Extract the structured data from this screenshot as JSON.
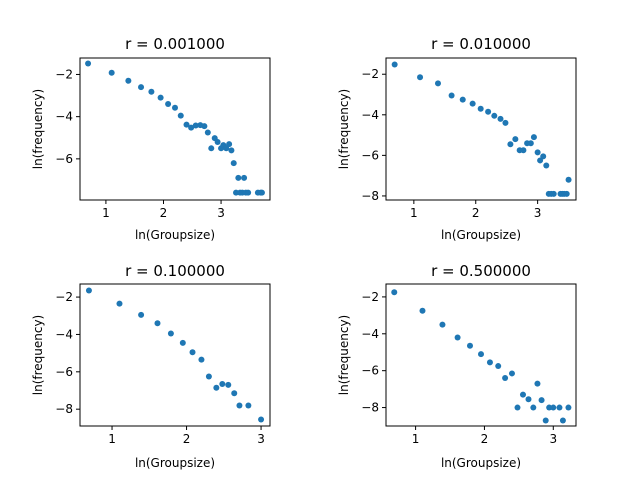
{
  "chart_data": [
    {
      "type": "scatter",
      "title": "r = 0.001000",
      "xlabel": "ln(Groupsize)",
      "ylabel": "ln(frequency)",
      "xlim": [
        0.55,
        3.85
      ],
      "ylim": [
        -7.95,
        -1.22
      ],
      "xticks": [
        1,
        2,
        3
      ],
      "yticks": [
        -2,
        -4,
        -6
      ],
      "color": "#1f77b4",
      "points": [
        [
          0.69,
          -1.48
        ],
        [
          1.1,
          -1.92
        ],
        [
          1.39,
          -2.3
        ],
        [
          1.61,
          -2.6
        ],
        [
          1.79,
          -2.82
        ],
        [
          1.95,
          -3.1
        ],
        [
          2.08,
          -3.4
        ],
        [
          2.2,
          -3.58
        ],
        [
          2.3,
          -3.95
        ],
        [
          2.4,
          -4.38
        ],
        [
          2.48,
          -4.52
        ],
        [
          2.56,
          -4.42
        ],
        [
          2.64,
          -4.4
        ],
        [
          2.71,
          -4.45
        ],
        [
          2.77,
          -4.75
        ],
        [
          2.83,
          -5.5
        ],
        [
          2.89,
          -5.02
        ],
        [
          2.94,
          -5.2
        ],
        [
          3.0,
          -5.5
        ],
        [
          3.04,
          -5.35
        ],
        [
          3.09,
          -5.5
        ],
        [
          3.14,
          -5.3
        ],
        [
          3.18,
          -5.6
        ],
        [
          3.22,
          -6.2
        ],
        [
          3.26,
          -7.6
        ],
        [
          3.3,
          -6.9
        ],
        [
          3.33,
          -7.6
        ],
        [
          3.37,
          -7.6
        ],
        [
          3.4,
          -6.9
        ],
        [
          3.43,
          -7.6
        ],
        [
          3.47,
          -7.6
        ],
        [
          3.64,
          -7.6
        ],
        [
          3.69,
          -7.6
        ],
        [
          3.71,
          -7.6
        ]
      ]
    },
    {
      "type": "scatter",
      "title": "r = 0.010000",
      "xlabel": "ln(Groupsize)",
      "ylabel": "ln(frequency)",
      "xlim": [
        0.55,
        3.62
      ],
      "ylim": [
        -8.2,
        -1.2
      ],
      "xticks": [
        1,
        2,
        3
      ],
      "yticks": [
        -2,
        -4,
        -6,
        -8
      ],
      "color": "#1f77b4",
      "points": [
        [
          0.69,
          -1.52
        ],
        [
          1.1,
          -2.15
        ],
        [
          1.39,
          -2.45
        ],
        [
          1.61,
          -3.05
        ],
        [
          1.79,
          -3.25
        ],
        [
          1.95,
          -3.45
        ],
        [
          2.08,
          -3.7
        ],
        [
          2.2,
          -3.85
        ],
        [
          2.3,
          -4.05
        ],
        [
          2.4,
          -4.2
        ],
        [
          2.48,
          -4.4
        ],
        [
          2.56,
          -5.45
        ],
        [
          2.64,
          -5.2
        ],
        [
          2.71,
          -5.75
        ],
        [
          2.77,
          -5.75
        ],
        [
          2.83,
          -5.4
        ],
        [
          2.89,
          -5.4
        ],
        [
          2.94,
          -5.1
        ],
        [
          3.0,
          -5.85
        ],
        [
          3.04,
          -6.25
        ],
        [
          3.09,
          -6.05
        ],
        [
          3.14,
          -6.5
        ],
        [
          3.18,
          -7.9
        ],
        [
          3.22,
          -7.9
        ],
        [
          3.26,
          -7.9
        ],
        [
          3.37,
          -7.9
        ],
        [
          3.4,
          -7.9
        ],
        [
          3.43,
          -7.9
        ],
        [
          3.47,
          -7.9
        ],
        [
          3.5,
          -7.2
        ]
      ]
    },
    {
      "type": "scatter",
      "title": "r = 0.100000",
      "xlabel": "ln(Groupsize)",
      "ylabel": "ln(frequency)",
      "xlim": [
        0.57,
        3.12
      ],
      "ylim": [
        -8.9,
        -1.3
      ],
      "xticks": [
        1,
        2,
        3
      ],
      "yticks": [
        -2,
        -4,
        -6,
        -8
      ],
      "color": "#1f77b4",
      "points": [
        [
          0.69,
          -1.65
        ],
        [
          1.1,
          -2.35
        ],
        [
          1.39,
          -2.95
        ],
        [
          1.61,
          -3.4
        ],
        [
          1.79,
          -3.95
        ],
        [
          1.95,
          -4.45
        ],
        [
          2.08,
          -4.95
        ],
        [
          2.2,
          -5.35
        ],
        [
          2.3,
          -6.25
        ],
        [
          2.4,
          -6.85
        ],
        [
          2.48,
          -6.65
        ],
        [
          2.56,
          -6.7
        ],
        [
          2.64,
          -7.15
        ],
        [
          2.71,
          -7.8
        ],
        [
          2.83,
          -7.8
        ],
        [
          3.0,
          -8.55
        ]
      ]
    },
    {
      "type": "scatter",
      "title": "r = 0.500000",
      "xlabel": "ln(Groupsize)",
      "ylabel": "ln(frequency)",
      "xlim": [
        0.57,
        3.33
      ],
      "ylim": [
        -9.0,
        -1.3
      ],
      "xticks": [
        1,
        2,
        3
      ],
      "yticks": [
        -2,
        -4,
        -6,
        -8
      ],
      "color": "#1f77b4",
      "points": [
        [
          0.69,
          -1.75
        ],
        [
          1.1,
          -2.75
        ],
        [
          1.39,
          -3.5
        ],
        [
          1.61,
          -4.2
        ],
        [
          1.79,
          -4.65
        ],
        [
          1.95,
          -5.1
        ],
        [
          2.08,
          -5.55
        ],
        [
          2.2,
          -5.75
        ],
        [
          2.3,
          -6.4
        ],
        [
          2.4,
          -6.15
        ],
        [
          2.48,
          -8.0
        ],
        [
          2.56,
          -7.3
        ],
        [
          2.64,
          -7.55
        ],
        [
          2.71,
          -8.0
        ],
        [
          2.77,
          -6.7
        ],
        [
          2.83,
          -7.6
        ],
        [
          2.89,
          -8.7
        ],
        [
          2.94,
          -8.0
        ],
        [
          3.0,
          -8.0
        ],
        [
          3.09,
          -8.0
        ],
        [
          3.14,
          -8.7
        ],
        [
          3.22,
          -8.0
        ]
      ]
    }
  ]
}
